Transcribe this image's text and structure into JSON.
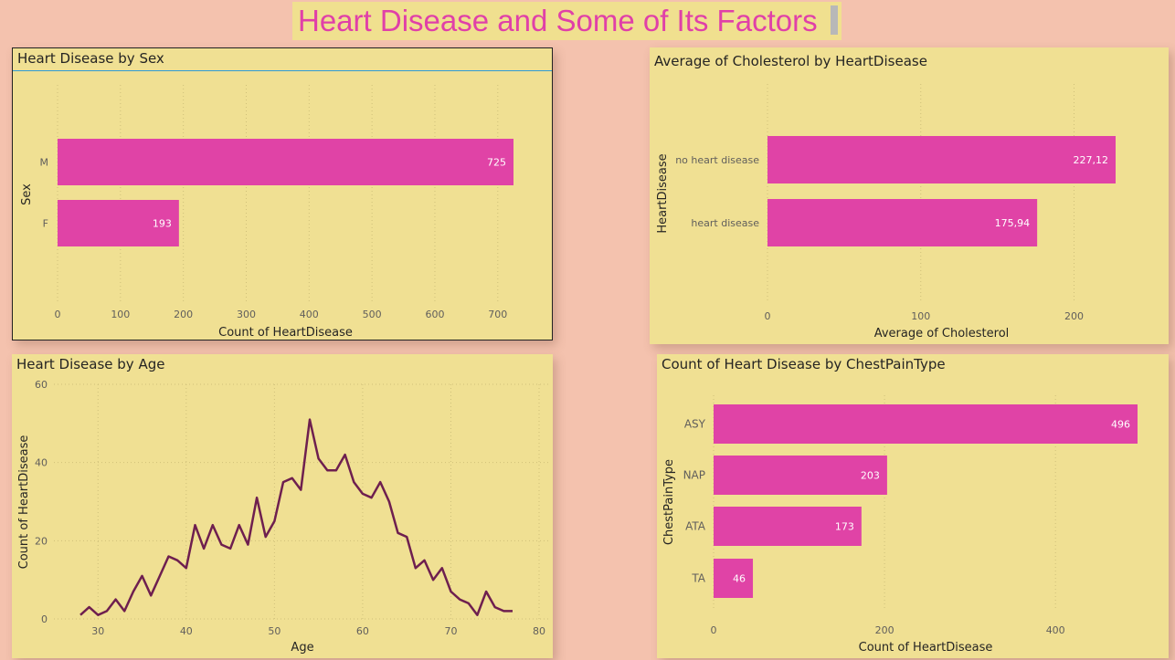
{
  "report_title": "Heart Disease and Some of Its Factors",
  "colors": {
    "bar": "#e043a6",
    "line": "#6e1f4f",
    "panel": "#f0e093",
    "background": "#f4c2ae",
    "title": "#e040a8"
  },
  "chart_data": [
    {
      "id": "sex",
      "type": "bar",
      "orientation": "horizontal",
      "title": "Heart Disease by Sex",
      "xlabel": "Count of HeartDisease",
      "ylabel": "Sex",
      "categories": [
        "M",
        "F"
      ],
      "values": [
        725,
        193
      ],
      "data_labels": [
        "725",
        "193"
      ],
      "xticks": [
        "0",
        "100",
        "200",
        "300",
        "400",
        "500",
        "600",
        "700"
      ],
      "xlim": [
        0,
        725
      ]
    },
    {
      "id": "cholesterol",
      "type": "bar",
      "orientation": "horizontal",
      "title": "Average of Cholesterol by HeartDisease",
      "xlabel": "Average of Cholesterol",
      "ylabel": "HeartDisease",
      "categories": [
        "no heart disease",
        "heart disease"
      ],
      "values": [
        227.12,
        175.94
      ],
      "data_labels": [
        "227,12",
        "175,94"
      ],
      "xticks": [
        "0",
        "100",
        "200"
      ],
      "xlim": [
        0,
        227.12
      ]
    },
    {
      "id": "age",
      "type": "line",
      "title": "Heart Disease by Age",
      "xlabel": "Age",
      "ylabel": "Count of HeartDisease",
      "x": [
        28,
        29,
        30,
        31,
        32,
        33,
        34,
        35,
        36,
        37,
        38,
        39,
        40,
        41,
        42,
        43,
        44,
        45,
        46,
        47,
        48,
        49,
        50,
        51,
        52,
        53,
        54,
        55,
        56,
        57,
        58,
        59,
        60,
        61,
        62,
        63,
        64,
        65,
        66,
        67,
        68,
        69,
        70,
        71,
        72,
        73,
        74,
        75,
        76,
        77
      ],
      "y": [
        1,
        3,
        1,
        2,
        5,
        2,
        7,
        11,
        6,
        11,
        16,
        15,
        13,
        24,
        18,
        24,
        19,
        18,
        24,
        19,
        31,
        21,
        25,
        35,
        36,
        33,
        51,
        41,
        38,
        38,
        42,
        35,
        32,
        31,
        35,
        30,
        22,
        21,
        13,
        15,
        10,
        13,
        7,
        5,
        4,
        1,
        7,
        3,
        2,
        2
      ],
      "xticks": [
        "30",
        "40",
        "50",
        "60",
        "70",
        "80"
      ],
      "yticks": [
        "0",
        "20",
        "40",
        "60"
      ],
      "xlim": [
        25,
        80
      ],
      "ylim": [
        0,
        60
      ]
    },
    {
      "id": "chestpain",
      "type": "bar",
      "orientation": "horizontal",
      "title": "Count of Heart Disease by ChestPainType",
      "xlabel": "Count of HeartDisease",
      "ylabel": "ChestPainType",
      "categories": [
        "ASY",
        "NAP",
        "ATA",
        "TA"
      ],
      "values": [
        496,
        203,
        173,
        46
      ],
      "data_labels": [
        "496",
        "203",
        "173",
        "46"
      ],
      "xticks": [
        "0",
        "200",
        "400"
      ],
      "xlim": [
        0,
        496
      ]
    }
  ]
}
